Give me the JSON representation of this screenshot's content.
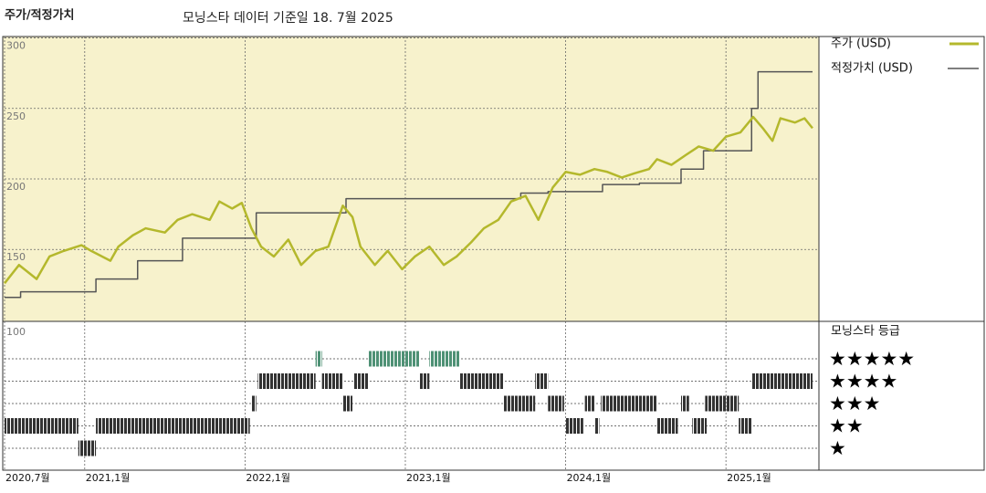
{
  "chart_data": {
    "type": "line",
    "title": "주가/적정가치",
    "subtitle": "모닝스타 데이터 기준일 18. 7월 2025",
    "xlim": [
      2020.5,
      2025.58
    ],
    "xticks": [
      {
        "value": 2020.5,
        "label": "2020,7월"
      },
      {
        "value": 2021.0,
        "label": "2021,1월"
      },
      {
        "value": 2022.0,
        "label": "2022,1월"
      },
      {
        "value": 2023.0,
        "label": "2023,1월"
      },
      {
        "value": 2024.0,
        "label": "2024,1월"
      },
      {
        "value": 2025.0,
        "label": "2025,1월"
      }
    ],
    "ylim": [
      99,
      301
    ],
    "yticks": [
      300,
      250,
      200,
      150
    ],
    "grid": true,
    "series": [
      {
        "name": "주가 (USD)",
        "color": "#b4b82c",
        "x": [
          2020.5,
          2020.59,
          2020.7,
          2020.78,
          2020.87,
          2020.98,
          2021.04,
          2021.16,
          2021.21,
          2021.3,
          2021.38,
          2021.5,
          2021.58,
          2021.67,
          2021.78,
          2021.84,
          2021.92,
          2021.98,
          2022.04,
          2022.1,
          2022.18,
          2022.27,
          2022.35,
          2022.44,
          2022.52,
          2022.61,
          2022.67,
          2022.72,
          2022.81,
          2022.89,
          2022.98,
          2023.06,
          2023.15,
          2023.24,
          2023.32,
          2023.41,
          2023.49,
          2023.58,
          2023.66,
          2023.75,
          2023.83,
          2023.92,
          2024.0,
          2024.09,
          2024.18,
          2024.26,
          2024.35,
          2024.43,
          2024.52,
          2024.57,
          2024.66,
          2024.75,
          2024.83,
          2024.92,
          2025.0,
          2025.09,
          2025.17,
          2025.23,
          2025.29,
          2025.34,
          2025.43,
          2025.49,
          2025.54
        ],
        "values": [
          126,
          139,
          129,
          145,
          149,
          153,
          149,
          142,
          152,
          160,
          165,
          162,
          171,
          175,
          171,
          184,
          179,
          183,
          165,
          152,
          145,
          157,
          139,
          149,
          152,
          181,
          173,
          152,
          139,
          149,
          136,
          145,
          152,
          139,
          145,
          155,
          165,
          171,
          184,
          188,
          171,
          194,
          205,
          203,
          207,
          205,
          201,
          204,
          207,
          214,
          210,
          217,
          223,
          220,
          230,
          233,
          244,
          236,
          227,
          243,
          240,
          243,
          236
        ]
      },
      {
        "name": "적정가치 (USD)",
        "color": "#555555",
        "step": "post",
        "x": [
          2020.5,
          2020.6,
          2021.07,
          2021.33,
          2021.61,
          2022.07,
          2022.63,
          2023.72,
          2023.89,
          2024.23,
          2024.46,
          2024.72,
          2024.86,
          2025.16,
          2025.2,
          2025.54
        ],
        "values": [
          116,
          120,
          129,
          142,
          158,
          176,
          186,
          190,
          191,
          196,
          197,
          207,
          220,
          250,
          276,
          276
        ]
      }
    ],
    "ratings": {
      "title": "모닝스타 등급",
      "label": "100",
      "levels": [
        "★",
        "★★",
        "★★★",
        "★★★★",
        "★★★★★"
      ],
      "colors": [
        "#333333",
        "#333333",
        "#333333",
        "#333333",
        "#4e9175"
      ],
      "segments": [
        {
          "rating": 2,
          "start": 2020.5,
          "end": 2020.96
        },
        {
          "rating": 1,
          "start": 2020.96,
          "end": 2021.07
        },
        {
          "rating": 2,
          "start": 2021.07,
          "end": 2022.03
        },
        {
          "rating": 3,
          "start": 2022.04,
          "end": 2022.07
        },
        {
          "rating": 4,
          "start": 2022.08,
          "end": 2022.44
        },
        {
          "rating": 5,
          "start": 2022.44,
          "end": 2022.48
        },
        {
          "rating": 4,
          "start": 2022.48,
          "end": 2022.61
        },
        {
          "rating": 3,
          "start": 2022.61,
          "end": 2022.67
        },
        {
          "rating": 4,
          "start": 2022.68,
          "end": 2022.77
        },
        {
          "rating": 5,
          "start": 2022.77,
          "end": 2023.09
        },
        {
          "rating": 4,
          "start": 2023.09,
          "end": 2023.15
        },
        {
          "rating": 5,
          "start": 2023.15,
          "end": 2023.34
        },
        {
          "rating": 4,
          "start": 2023.34,
          "end": 2023.61
        },
        {
          "rating": 3,
          "start": 2023.61,
          "end": 2023.81
        },
        {
          "rating": 4,
          "start": 2023.81,
          "end": 2023.89
        },
        {
          "rating": 3,
          "start": 2023.89,
          "end": 2023.99
        },
        {
          "rating": 2,
          "start": 2024.0,
          "end": 2024.11
        },
        {
          "rating": 3,
          "start": 2024.12,
          "end": 2024.18
        },
        {
          "rating": 2,
          "start": 2024.18,
          "end": 2024.21
        },
        {
          "rating": 3,
          "start": 2024.22,
          "end": 2024.57
        },
        {
          "rating": 2,
          "start": 2024.57,
          "end": 2024.7
        },
        {
          "rating": 3,
          "start": 2024.72,
          "end": 2024.77
        },
        {
          "rating": 2,
          "start": 2024.79,
          "end": 2024.88
        },
        {
          "rating": 3,
          "start": 2024.87,
          "end": 2025.08
        },
        {
          "rating": 2,
          "start": 2025.08,
          "end": 2025.16
        },
        {
          "rating": 4,
          "start": 2025.16,
          "end": 2025.54
        }
      ]
    }
  }
}
